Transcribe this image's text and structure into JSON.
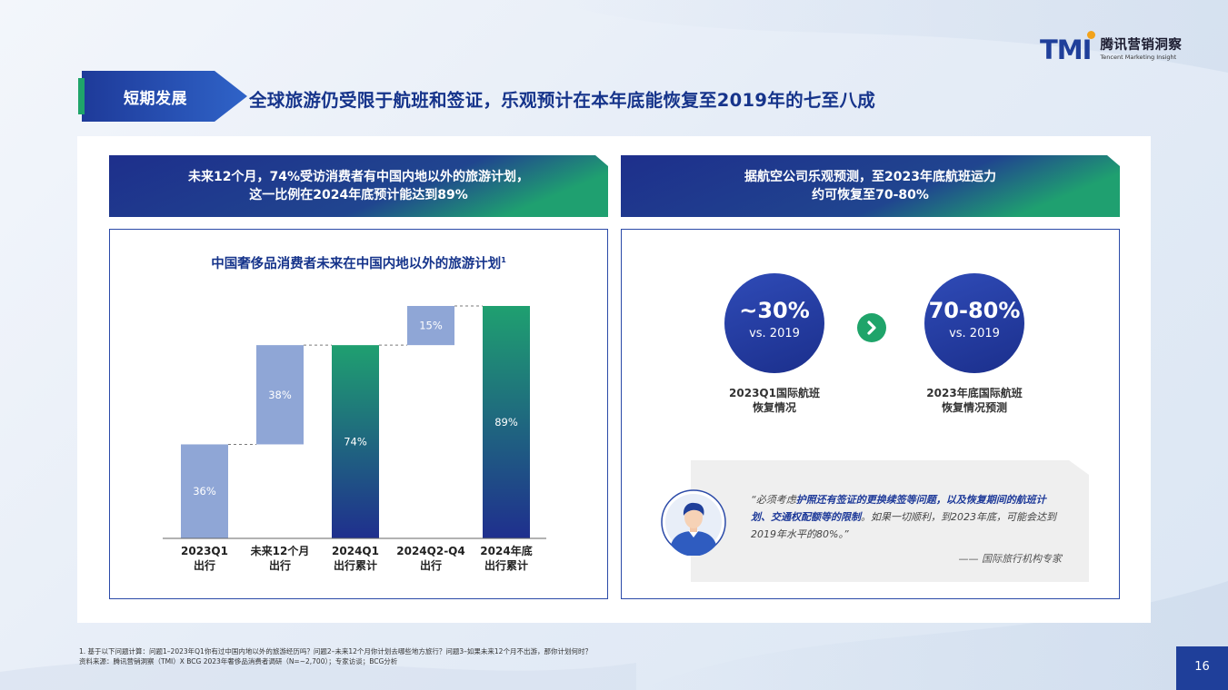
{
  "brand": {
    "logo_mark": "TMI",
    "name_cn": "腾讯营销洞察",
    "name_en": "Tencent Marketing Insight"
  },
  "section_tag": "短期发展",
  "page_title": "全球旅游仍受限于航班和签证，乐观预计在本年底能恢复至2019年的七至八成",
  "left_banner": {
    "line1": "未来12个月，74%受访消费者有中国内地以外的旅游计划，",
    "line2": "这一比例在2024年底预计能达到89%"
  },
  "right_banner": {
    "line1": "据航空公司乐观预测，至2023年底航班运力",
    "line2": "约可恢复至70-80%"
  },
  "chart_data": {
    "type": "bar",
    "subtype": "waterfall",
    "title": "中国奢侈品消费者未来在中国内地以外的旅游计划",
    "title_footnote": "1",
    "categories": [
      [
        "2023Q1",
        "出行"
      ],
      [
        "未来12个月",
        "出行"
      ],
      [
        "2024Q1",
        "出行累计"
      ],
      [
        "2024Q2-Q4",
        "出行"
      ],
      [
        "2024年底",
        "出行累计"
      ]
    ],
    "bars": [
      {
        "label": "36%",
        "base": 0,
        "value": 36,
        "kind": "increment"
      },
      {
        "label": "38%",
        "base": 36,
        "value": 38,
        "kind": "increment"
      },
      {
        "label": "74%",
        "base": 0,
        "value": 74,
        "kind": "total"
      },
      {
        "label": "15%",
        "base": 74,
        "value": 15,
        "kind": "increment"
      },
      {
        "label": "89%",
        "base": 0,
        "value": 89,
        "kind": "total"
      }
    ],
    "ylim": [
      0,
      89
    ],
    "colors": {
      "increment": "#8fa6d6",
      "total_top": "#1fa070",
      "total_bottom": "#1f2f8e",
      "connector": "#7a7a7a"
    }
  },
  "recovery": {
    "current": {
      "value": "~30%",
      "sub": "vs. 2019",
      "caption1": "2023Q1国际航班",
      "caption2": "恢复情况"
    },
    "forecast": {
      "value": "70-80%",
      "sub": "vs. 2019",
      "caption1": "2023年底国际航班",
      "caption2": "恢复情况预测"
    },
    "arrow_icon": "chevron-right-icon"
  },
  "quote": {
    "open": "“必须考虑",
    "highlight1": "护照还有签证的更换续签等问题，以及恢复期间的航班计划、交通权配额等的限制",
    "middle": "。如果一切顺利，到2023年底，可能会达到2019年水平的80%。”",
    "author": "—— 国际旅行机构专家"
  },
  "footnotes": {
    "line1": "1. 基于以下问题计算：问题1–2023年Q1你有过中国内地以外的旅游经历吗？问题2–未来12个月你计划去哪些地方旅行？问题3–如果未来12个月不出游，那你计划何时？",
    "line2": "资料来源：腾讯营销洞察（TMI）X BCG 2023年奢侈品消费者调研（N=~2,700）；专家访谈；BCG分析"
  },
  "page_number": "16"
}
